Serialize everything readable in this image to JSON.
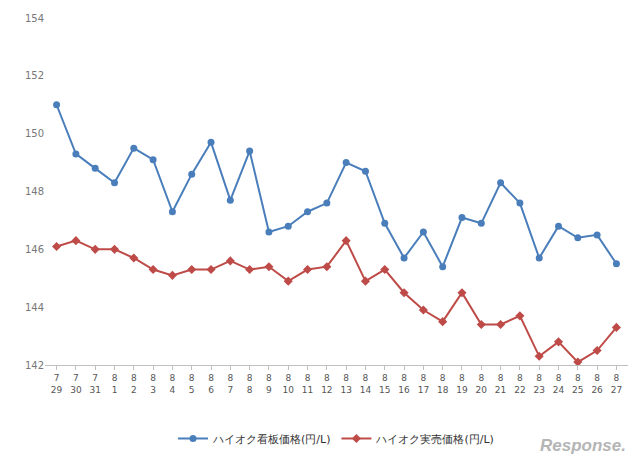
{
  "chart_data": {
    "type": "line",
    "categories": [
      "7\n29",
      "7\n30",
      "7\n31",
      "8\n1",
      "8\n2",
      "8\n3",
      "8\n4",
      "8\n5",
      "8\n6",
      "8\n7",
      "8\n8",
      "8\n9",
      "8\n10",
      "8\n11",
      "8\n12",
      "8\n13",
      "8\n14",
      "8\n15",
      "8\n16",
      "8\n17",
      "8\n18",
      "8\n19",
      "8\n20",
      "8\n21",
      "8\n22",
      "8\n23",
      "8\n24",
      "8\n25",
      "8\n26",
      "8\n27"
    ],
    "series": [
      {
        "name": "ハイオク看板価格(円/L)",
        "color": "#4a7ebb",
        "marker": "circle",
        "values": [
          151.0,
          149.3,
          148.8,
          148.3,
          149.5,
          149.1,
          147.3,
          148.6,
          149.7,
          147.7,
          149.4,
          146.6,
          146.8,
          147.3,
          147.6,
          149.0,
          148.7,
          146.9,
          145.7,
          146.6,
          145.4,
          147.1,
          146.9,
          148.3,
          147.6,
          145.7,
          146.8,
          146.4,
          146.5,
          145.5
        ]
      },
      {
        "name": "ハイオク実売価格(円/L)",
        "color": "#be4b48",
        "marker": "diamond",
        "values": [
          146.1,
          146.3,
          146.0,
          146.0,
          145.7,
          145.3,
          145.1,
          145.3,
          145.3,
          145.6,
          145.3,
          145.4,
          144.9,
          145.3,
          145.4,
          146.3,
          144.9,
          145.3,
          144.5,
          143.9,
          143.5,
          144.5,
          143.4,
          143.4,
          143.7,
          142.3,
          142.8,
          142.1,
          142.5,
          143.3
        ]
      }
    ],
    "ylim": [
      142,
      154
    ],
    "yticks": [
      142,
      144,
      146,
      148,
      150,
      152,
      154
    ],
    "grid": false,
    "legend": "bottom",
    "annotations": [
      "Response."
    ]
  }
}
